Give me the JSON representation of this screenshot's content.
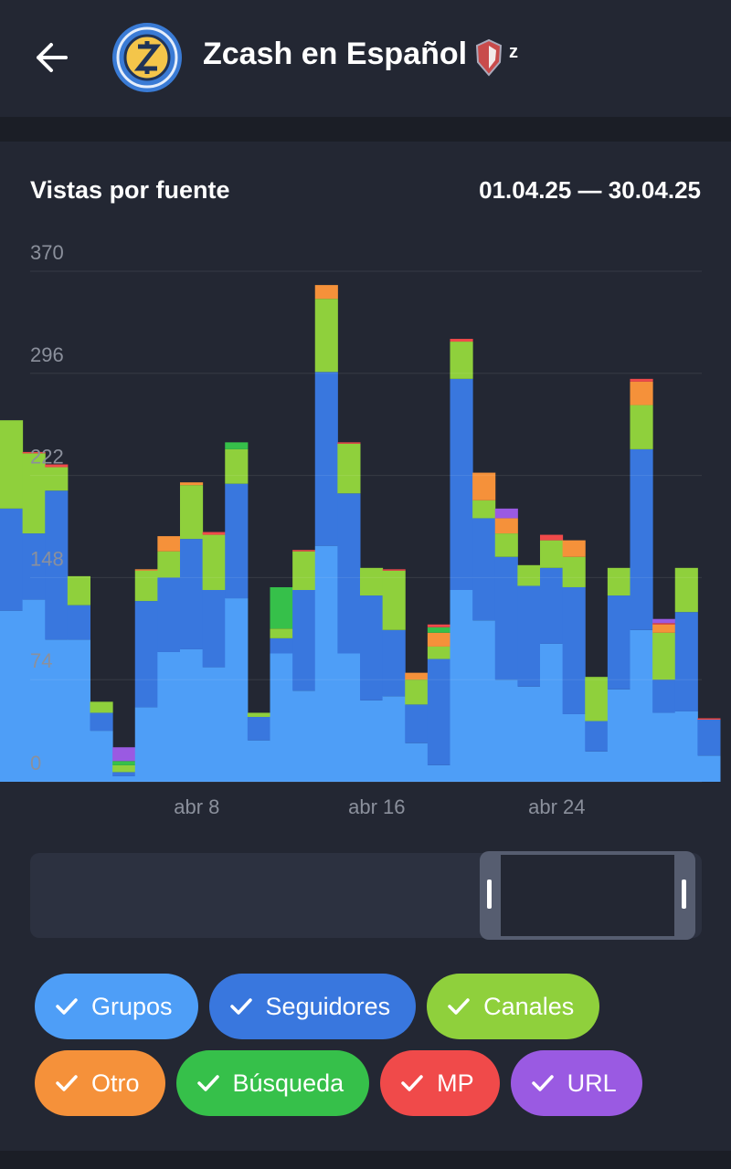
{
  "header": {
    "title": "Zcash en Español",
    "badge": "z"
  },
  "chart_data": {
    "type": "bar",
    "stacked": true,
    "title": "Vistas por fuente",
    "subtitle": "01.04.25 — 30.04.25",
    "categories": [
      null,
      null,
      null,
      null,
      null,
      null,
      null,
      null,
      "abr 8",
      null,
      null,
      null,
      null,
      null,
      null,
      null,
      "abr 16",
      null,
      null,
      null,
      null,
      null,
      null,
      null,
      "abr 24",
      null,
      null,
      null,
      null,
      null,
      null,
      null
    ],
    "ylim": [
      0,
      370
    ],
    "yticks": [
      0,
      74,
      148,
      222,
      296,
      370
    ],
    "grid": true,
    "series": [
      {
        "name": "Grupos",
        "color": "#4e9ef7",
        "values": [
          124,
          132,
          103,
          103,
          37,
          4,
          54,
          94,
          96,
          83,
          133,
          30,
          93,
          66,
          171,
          93,
          59,
          62,
          28,
          12,
          139,
          117,
          74,
          69,
          100,
          49,
          22,
          67,
          110,
          50,
          51,
          19
        ]
      },
      {
        "name": "Seguidores",
        "color": "#3977de",
        "values": [
          74,
          48,
          108,
          25,
          13,
          3,
          77,
          54,
          80,
          56,
          83,
          17,
          11,
          73,
          126,
          116,
          76,
          48,
          28,
          77,
          153,
          74,
          89,
          73,
          55,
          92,
          22,
          68,
          131,
          24,
          72,
          26
        ]
      },
      {
        "name": "Canales",
        "color": "#8fd03c",
        "values": [
          64,
          58,
          17,
          21,
          8,
          5,
          22,
          19,
          39,
          40,
          25,
          3,
          7,
          28,
          53,
          36,
          20,
          43,
          18,
          9,
          27,
          13,
          17,
          15,
          20,
          22,
          32,
          20,
          32,
          34,
          32,
          0
        ]
      },
      {
        "name": "Otro",
        "color": "#f5913a",
        "values": [
          0,
          0,
          0,
          0,
          0,
          0,
          1,
          11,
          2,
          0,
          0,
          0,
          0,
          0,
          10,
          0,
          0,
          0,
          5,
          10,
          0,
          20,
          11,
          0,
          0,
          12,
          0,
          0,
          17,
          6,
          0,
          0
        ]
      },
      {
        "name": "Búsqueda",
        "color": "#36c04a",
        "values": [
          0,
          0,
          0,
          0,
          0,
          3,
          0,
          0,
          0,
          0,
          5,
          0,
          30,
          0,
          0,
          0,
          0,
          0,
          0,
          4,
          0,
          0,
          0,
          0,
          0,
          0,
          0,
          0,
          0,
          0,
          0,
          0
        ]
      },
      {
        "name": "MP",
        "color": "#f04a4a",
        "values": [
          0,
          1,
          2,
          0,
          0,
          0,
          0,
          0,
          0,
          2,
          0,
          0,
          0,
          1,
          0,
          1,
          0,
          1,
          0,
          2,
          2,
          0,
          0,
          0,
          4,
          0,
          0,
          0,
          2,
          1,
          0,
          1
        ]
      },
      {
        "name": "URL",
        "color": "#9a5ae2",
        "values": [
          0,
          0,
          0,
          0,
          0,
          10,
          0,
          0,
          0,
          0,
          0,
          0,
          0,
          0,
          0,
          0,
          0,
          0,
          0,
          0,
          0,
          0,
          7,
          0,
          0,
          0,
          0,
          0,
          0,
          3,
          0,
          0
        ]
      }
    ]
  }
}
